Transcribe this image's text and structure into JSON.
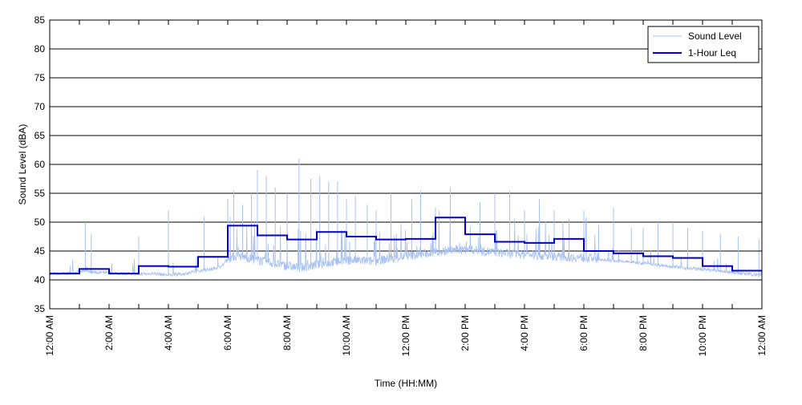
{
  "chart_data": {
    "type": "line",
    "xlabel": "Time (HH:MM)",
    "ylabel": "Sound Level (dBA)",
    "ylim": [
      35,
      85
    ],
    "xlim": [
      0,
      24
    ],
    "x_unit": "hours after 12:00 AM",
    "yticks": [
      35,
      40,
      45,
      50,
      55,
      60,
      65,
      70,
      75,
      80,
      85
    ],
    "xticks": [
      {
        "hour": 0,
        "label": "12:00 AM"
      },
      {
        "hour": 2,
        "label": "2:00 AM"
      },
      {
        "hour": 4,
        "label": "4:00 AM"
      },
      {
        "hour": 6,
        "label": "6:00 AM"
      },
      {
        "hour": 8,
        "label": "8:00 AM"
      },
      {
        "hour": 10,
        "label": "10:00 AM"
      },
      {
        "hour": 12,
        "label": "12:00 PM"
      },
      {
        "hour": 14,
        "label": "2:00 PM"
      },
      {
        "hour": 16,
        "label": "4:00 PM"
      },
      {
        "hour": 18,
        "label": "6:00 PM"
      },
      {
        "hour": 20,
        "label": "8:00 PM"
      },
      {
        "hour": 22,
        "label": "10:00 PM"
      },
      {
        "hour": 24,
        "label": "12:00 AM"
      }
    ],
    "grid": {
      "horizontal": true,
      "vertical": false
    },
    "legend_position": "top-right",
    "series": [
      {
        "name": "Sound Level",
        "color": "#a7c1f2",
        "x": [
          0,
          0.5,
          1,
          1.2,
          1.5,
          2,
          2.5,
          3,
          3.5,
          4,
          4.5,
          5,
          5.5,
          5.8,
          6,
          6.3,
          6.6,
          6.9,
          7.2,
          7.5,
          7.8,
          8.1,
          8.4,
          8.7,
          9,
          9.3,
          9.6,
          9.9,
          10.2,
          10.5,
          10.8,
          11.1,
          11.4,
          11.7,
          12,
          12.3,
          12.6,
          12.9,
          13.2,
          13.5,
          13.8,
          14.1,
          14.4,
          14.7,
          15,
          15.3,
          15.6,
          15.9,
          16.2,
          16.5,
          16.8,
          17.1,
          17.4,
          17.7,
          18,
          18.5,
          19,
          19.5,
          20,
          20.5,
          21,
          21.5,
          22,
          22.5,
          23,
          23.5,
          24
        ],
        "y": [
          40.9,
          41.0,
          41.3,
          41.4,
          41.2,
          41.1,
          41.0,
          40.9,
          41.0,
          40.7,
          40.9,
          41.4,
          41.8,
          42.3,
          43.4,
          43.8,
          43.6,
          43.2,
          42.9,
          42.6,
          42.3,
          42.0,
          41.8,
          42.0,
          42.3,
          42.5,
          42.8,
          43.0,
          43.1,
          43.0,
          42.9,
          43.1,
          43.3,
          43.5,
          43.8,
          44.0,
          44.2,
          44.4,
          44.6,
          44.8,
          44.9,
          45.0,
          44.8,
          44.6,
          44.4,
          44.3,
          44.2,
          44.1,
          44.0,
          43.9,
          43.8,
          43.7,
          43.6,
          43.6,
          43.5,
          43.4,
          43.2,
          43.0,
          42.8,
          42.5,
          42.2,
          41.9,
          41.7,
          41.5,
          41.2,
          40.9,
          40.7
        ],
        "spikes": [
          [
            1.2,
            50.0
          ],
          [
            1.4,
            48.0
          ],
          [
            3.0,
            47.5
          ],
          [
            4.0,
            52.0
          ],
          [
            5.2,
            51.0
          ],
          [
            6.0,
            54.0
          ],
          [
            6.2,
            55.5
          ],
          [
            6.5,
            53.0
          ],
          [
            6.8,
            55.0
          ],
          [
            7.0,
            59.0
          ],
          [
            7.3,
            58.0
          ],
          [
            7.6,
            56.0
          ],
          [
            8.0,
            55.0
          ],
          [
            8.4,
            61.0
          ],
          [
            8.8,
            57.5
          ],
          [
            9.1,
            58.0
          ],
          [
            9.4,
            57.0
          ],
          [
            9.7,
            57.0
          ],
          [
            10.0,
            54.0
          ],
          [
            10.3,
            54.5
          ],
          [
            10.7,
            53.0
          ],
          [
            11.0,
            52.0
          ],
          [
            11.5,
            55.0
          ],
          [
            12.2,
            54.0
          ],
          [
            12.5,
            55.5
          ],
          [
            13.0,
            52.5
          ],
          [
            13.5,
            56.0
          ],
          [
            14.5,
            53.5
          ],
          [
            15.0,
            55.0
          ],
          [
            15.5,
            55.5
          ],
          [
            16.0,
            52.0
          ],
          [
            16.5,
            54.0
          ],
          [
            17.0,
            52.0
          ],
          [
            17.5,
            50.5
          ],
          [
            18.0,
            52.0
          ],
          [
            18.5,
            49.5
          ],
          [
            19.0,
            52.5
          ],
          [
            19.6,
            49.0
          ],
          [
            20.0,
            49.0
          ],
          [
            20.5,
            50.0
          ],
          [
            21.0,
            50.0
          ],
          [
            21.5,
            49.0
          ],
          [
            22.0,
            48.5
          ],
          [
            22.6,
            48.0
          ],
          [
            23.2,
            47.5
          ],
          [
            23.9,
            47.0
          ]
        ]
      },
      {
        "name": "1-Hour Leq",
        "color": "#0000cc",
        "x": [
          0,
          1,
          2,
          3,
          4,
          5,
          6,
          7,
          8,
          9,
          10,
          11,
          12,
          13,
          14,
          15,
          16,
          17,
          18,
          19,
          20,
          21,
          22,
          23
        ],
        "y": [
          41.1,
          41.9,
          41.1,
          42.4,
          42.3,
          44.0,
          49.4,
          47.7,
          47.0,
          48.3,
          47.5,
          47.0,
          47.1,
          50.8,
          47.9,
          46.6,
          46.4,
          47.1,
          45.0,
          44.6,
          44.1,
          43.8,
          42.4,
          41.6
        ]
      }
    ]
  }
}
